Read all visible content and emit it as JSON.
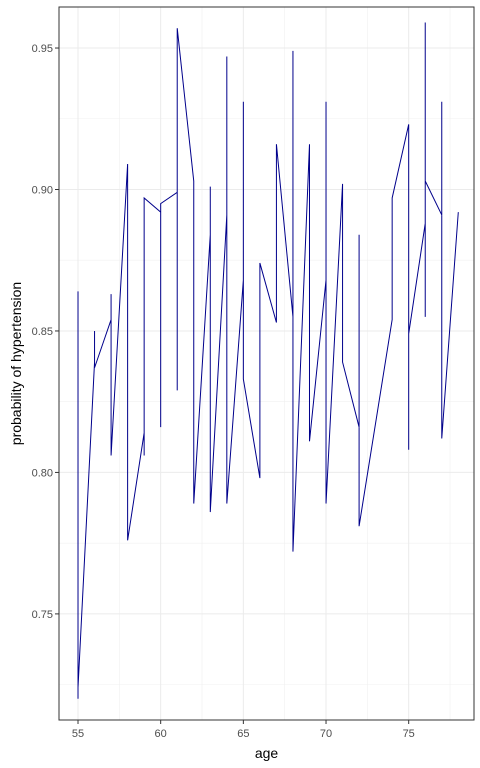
{
  "chart_data": {
    "type": "line",
    "title": "",
    "xlabel": "age",
    "ylabel": "probability of hypertension",
    "xlim": [
      53.85,
      78.95
    ],
    "ylim": [
      0.7125,
      0.9645
    ],
    "x_ticks": [
      55,
      60,
      65,
      70,
      75
    ],
    "y_ticks": [
      0.75,
      0.8,
      0.85,
      0.9,
      0.95
    ],
    "x_tick_labels": [
      "55",
      "60",
      "65",
      "70",
      "75"
    ],
    "y_tick_labels": [
      "0.75",
      "0.80",
      "0.85",
      "0.90",
      "0.95"
    ],
    "grid": true,
    "line_color": "#00008B",
    "series": [
      {
        "x": [
          55,
          55,
          55,
          56,
          56,
          56,
          57,
          57,
          57,
          58,
          58,
          59,
          59,
          59,
          60,
          60,
          60,
          61,
          61,
          61,
          62,
          62,
          63,
          63,
          63,
          64,
          64,
          64,
          65,
          65,
          65,
          66,
          66,
          67,
          67,
          68,
          68,
          68,
          69,
          69,
          70,
          70,
          70,
          71,
          71,
          72,
          72,
          72,
          74,
          74,
          75,
          75,
          75,
          76,
          76,
          76,
          76,
          77,
          77,
          77,
          78
        ],
        "y": [
          0.864,
          0.72,
          0.724,
          0.839,
          0.85,
          0.837,
          0.854,
          0.863,
          0.806,
          0.909,
          0.776,
          0.814,
          0.806,
          0.897,
          0.892,
          0.816,
          0.895,
          0.899,
          0.829,
          0.957,
          0.903,
          0.789,
          0.884,
          0.901,
          0.786,
          0.891,
          0.947,
          0.789,
          0.868,
          0.931,
          0.833,
          0.798,
          0.874,
          0.853,
          0.916,
          0.855,
          0.949,
          0.772,
          0.916,
          0.811,
          0.868,
          0.931,
          0.789,
          0.902,
          0.839,
          0.816,
          0.884,
          0.781,
          0.854,
          0.897,
          0.923,
          0.808,
          0.849,
          0.888,
          0.959,
          0.855,
          0.903,
          0.891,
          0.931,
          0.812,
          0.892
        ]
      }
    ]
  }
}
